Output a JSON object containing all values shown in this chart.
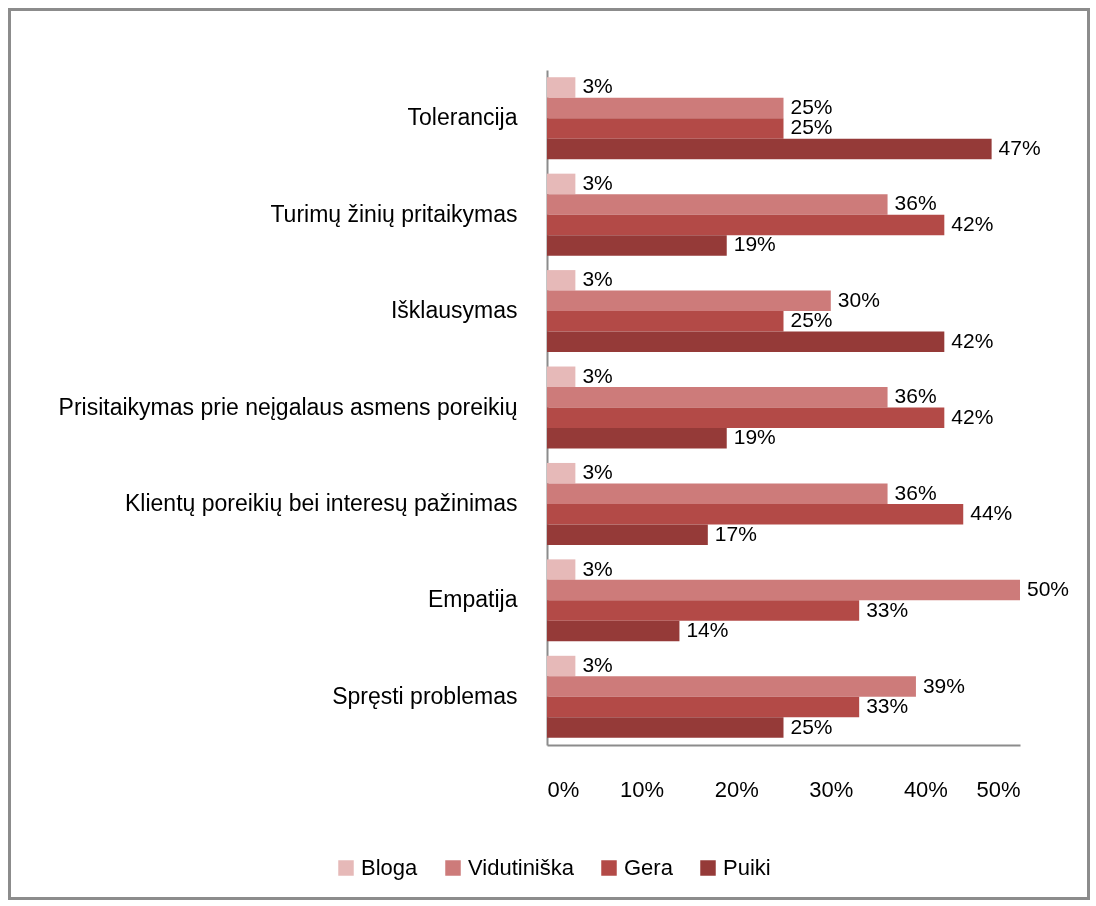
{
  "chart_data": {
    "type": "bar",
    "orientation": "horizontal",
    "categories": [
      "Tolerancija",
      "Turimų žinių pritaikymas",
      "Išklausymas",
      "Prisitaikymas prie neįgalaus asmens poreikių",
      "Klientų poreikių bei interesų pažinimas",
      "Empatija",
      "Spręsti problemas"
    ],
    "series": [
      {
        "name": "Bloga",
        "color": "#e6b9b8",
        "values": [
          3,
          3,
          3,
          3,
          3,
          3,
          3
        ],
        "value_labels": [
          "3%",
          "3%",
          "3%",
          "3%",
          "3%",
          "3%",
          "3%"
        ]
      },
      {
        "name": "Vidutiniška",
        "color": "#cd7b7a",
        "values": [
          25,
          36,
          30,
          36,
          36,
          50,
          39
        ],
        "value_labels": [
          "25%",
          "36%",
          "30%",
          "36%",
          "36%",
          "50%",
          "39%"
        ]
      },
      {
        "name": "Gera",
        "color": "#b34a47",
        "values": [
          25,
          42,
          25,
          42,
          44,
          33,
          33
        ],
        "value_labels": [
          "25%",
          "42%",
          "25%",
          "42%",
          "44%",
          "33%",
          "33%"
        ]
      },
      {
        "name": "Puiki",
        "color": "#953a38",
        "values": [
          47,
          19,
          42,
          19,
          17,
          14,
          25
        ],
        "value_labels": [
          "47%",
          "19%",
          "42%",
          "19%",
          "17%",
          "14%",
          "25%"
        ]
      }
    ],
    "xlim": [
      0,
      50
    ],
    "xticks": [
      {
        "value": 0,
        "label": "0%"
      },
      {
        "value": 10,
        "label": "10%"
      },
      {
        "value": 20,
        "label": "20%"
      },
      {
        "value": 30,
        "label": "30%"
      },
      {
        "value": 40,
        "label": "40%"
      },
      {
        "value": 50,
        "label": "50%"
      }
    ],
    "legend": "bottom"
  }
}
